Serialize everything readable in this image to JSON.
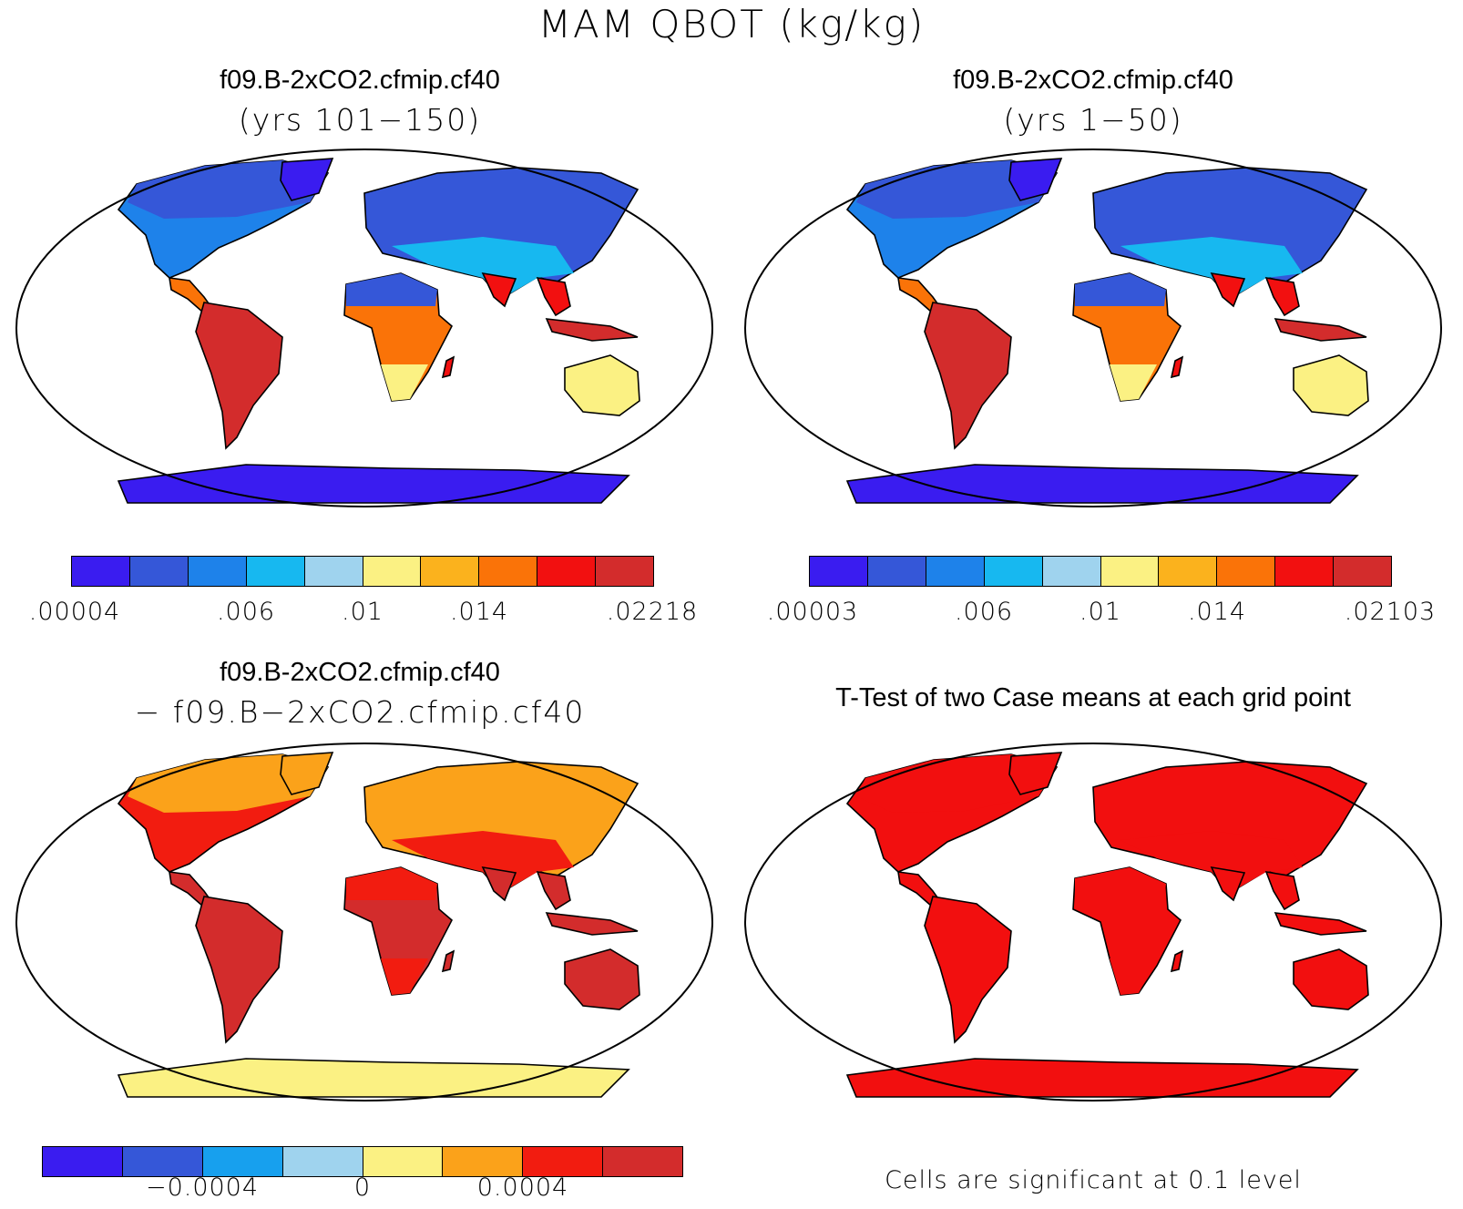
{
  "figure": {
    "title": "MAM QBOT (kg/kg)"
  },
  "colors": {
    "scale10": [
      "#3a1cf0",
      "#3557d8",
      "#1e82ea",
      "#17b8f0",
      "#9fd3ee",
      "#fbf183",
      "#fbb21d",
      "#fa7308",
      "#f21010",
      "#d32c2c"
    ],
    "scale8": [
      "#3a1cf0",
      "#3557d8",
      "#17a0ee",
      "#9fd3ee",
      "#fbf183",
      "#fba21a",
      "#f21c10",
      "#d32c2c"
    ],
    "signif": "#f20f0f",
    "ocean": "#ffffff"
  },
  "panels": {
    "p1": {
      "title": "f09.B-2xCO2.cfmip.cf40",
      "subtitle": "(yrs 101−150)",
      "colorbar_labels": [
        ".00004",
        ".006",
        ".01",
        ".014",
        ".02218"
      ]
    },
    "p2": {
      "title": "f09.B-2xCO2.cfmip.cf40",
      "subtitle": "(yrs 1−50)",
      "colorbar_labels": [
        ".00003",
        ".006",
        ".01",
        ".014",
        ".02103"
      ]
    },
    "p3": {
      "title": "f09.B-2xCO2.cfmip.cf40",
      "subtitle": "− f09.B−2xCO2.cfmip.cf40",
      "colorbar_labels": [
        "−0.0004",
        "0",
        "0.0004"
      ]
    },
    "p4": {
      "title": "T-Test of two Case means at each grid point",
      "note": "Cells are significant at 0.1 level"
    }
  }
}
